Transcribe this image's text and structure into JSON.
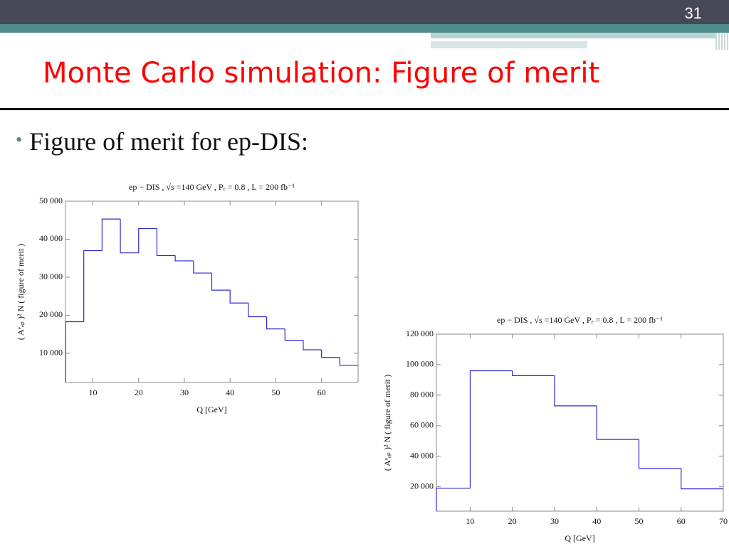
{
  "page_number": "31",
  "title": "Monte Carlo simulation: Figure of merit",
  "bullet": "Figure of merit for ep-DIS:",
  "chart_data": [
    {
      "type": "histogram",
      "title": "ep − DIS ,  √s  =140  GeV ,  Pₑ = 0.8 ,  L = 200  fb⁻¹",
      "x_label": "Q  [GeV]",
      "y_label": "( Aᵉₑₚ )² N  ( figure  of  merit )",
      "bins": [
        4,
        8,
        12,
        16,
        20,
        24,
        28,
        32,
        36,
        40,
        44,
        48,
        52,
        56,
        60,
        64,
        68
      ],
      "values": [
        18300,
        37000,
        45300,
        36400,
        42800,
        35700,
        34300,
        31100,
        26600,
        23200,
        19600,
        16400,
        13400,
        10900,
        8900,
        6800
      ],
      "color": "#2b2bd8",
      "xlim": [
        4,
        68
      ],
      "ylim": [
        2300,
        50000
      ],
      "xticks": [
        10,
        20,
        30,
        40,
        50,
        60
      ],
      "yticks": [
        {
          "value": 10000,
          "label": "10 000"
        },
        {
          "value": 20000,
          "label": "20 000"
        },
        {
          "value": 30000,
          "label": "30 000"
        },
        {
          "value": 40000,
          "label": "40 000"
        },
        {
          "value": 50000,
          "label": "50 000"
        }
      ]
    },
    {
      "type": "histogram",
      "title": "ep − DIS ,  √s  =140  GeV ,  Pₑ = 0.8 ,  L = 200  fb⁻¹",
      "x_label": "Q  [GeV]",
      "y_label": "( Aᵉₑₚ )² N  ( figure  of  merit )",
      "bins": [
        2,
        10,
        20,
        30,
        40,
        50,
        60,
        70
      ],
      "values": [
        19000,
        96000,
        92800,
        73000,
        51000,
        32000,
        18600
      ],
      "color": "#2b2bd8",
      "xlim": [
        2,
        70
      ],
      "ylim": [
        4000,
        120000
      ],
      "xticks": [
        10,
        20,
        30,
        40,
        50,
        60,
        70
      ],
      "yticks": [
        {
          "value": 20000,
          "label": "20 000"
        },
        {
          "value": 40000,
          "label": "40 000"
        },
        {
          "value": 60000,
          "label": "60 000"
        },
        {
          "value": 80000,
          "label": "80 000"
        },
        {
          "value": 100000,
          "label": "100 000"
        },
        {
          "value": 120000,
          "label": "120 000"
        }
      ]
    }
  ]
}
